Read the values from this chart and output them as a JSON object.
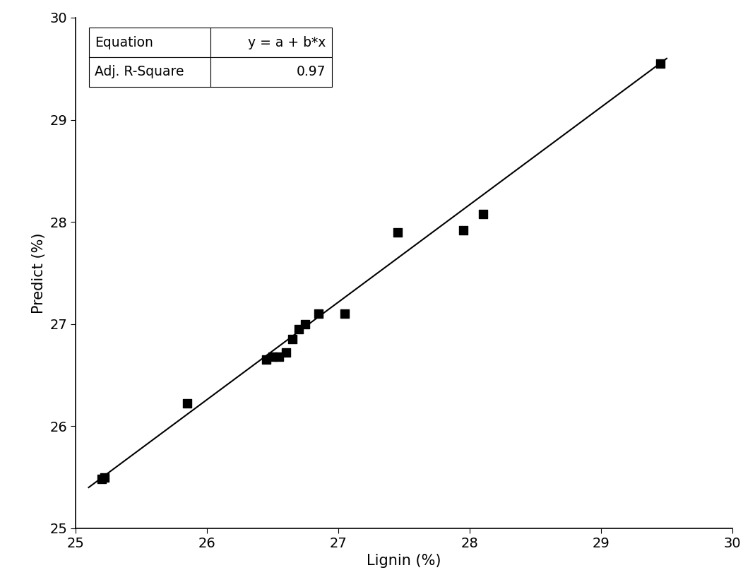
{
  "scatter_x": [
    25.2,
    25.22,
    25.85,
    26.45,
    26.5,
    26.55,
    26.6,
    26.65,
    26.7,
    26.75,
    26.85,
    27.05,
    27.45,
    27.95,
    28.1,
    29.45
  ],
  "scatter_y": [
    25.48,
    25.5,
    26.22,
    26.65,
    26.68,
    26.68,
    26.72,
    26.85,
    26.95,
    27.0,
    27.1,
    27.1,
    27.9,
    27.92,
    28.08,
    29.55
  ],
  "line_x0": 25.1,
  "line_x1": 29.5,
  "line_y0": 25.4,
  "line_y1": 29.6,
  "xlim": [
    25.0,
    30.0
  ],
  "ylim": [
    25.0,
    30.0
  ],
  "xlabel": "Lignin (%)",
  "ylabel": "Predict (%)",
  "xticks": [
    25,
    26,
    27,
    28,
    29,
    30
  ],
  "yticks": [
    25,
    26,
    27,
    28,
    29,
    30
  ],
  "equation_label": "y = a + b*x",
  "r_square": "0.97",
  "marker_color": "#000000",
  "line_color": "#000000",
  "background_color": "#ffffff",
  "marker_size": 80,
  "font_size": 15,
  "axis_linewidth": 1.2,
  "table_data": [
    [
      "Equation",
      "y = a + b*x"
    ],
    [
      "Adj. R-Square",
      "0.97"
    ]
  ]
}
